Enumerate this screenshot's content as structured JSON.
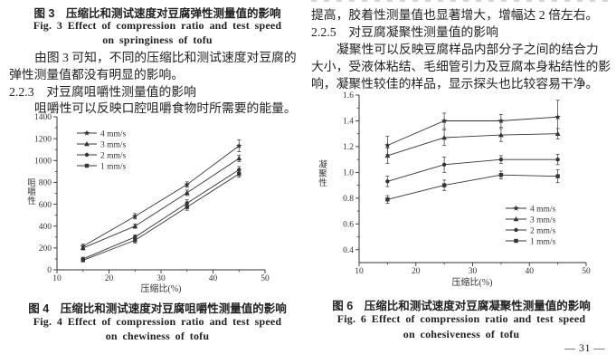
{
  "left_column": {
    "fig3": {
      "cn": "图 3　压缩比和测试速度对豆腐弹性测量值的影响",
      "en1": "Fig. 3 Effect of compression ratio and test speed",
      "en2": "on springiness of tofu"
    },
    "para1": [
      "由图 3 可知，不同的压缩比和测试速度对豆腐的",
      "弹性测量值都没有明显的影响。"
    ],
    "section_223": "2.2.3　对豆腐咀嚼性测量值的影响",
    "para2": [
      "咀嚼性可以反映口腔咀嚼食物时所需要的能量。"
    ],
    "fig4": {
      "cn": "图 4　压缩比和测试速度对豆腐咀嚼性测量值的影响",
      "en1": "Fig. 4 Effect of compression ratio and test speed",
      "en2": "on chewiness of tofu"
    }
  },
  "right_column": {
    "para3": [
      "提高，胶着性测量值也显著增大，增幅达 2 倍左右。"
    ],
    "section_225": "2.2.5　对豆腐凝聚性测量值的影响",
    "para4": [
      "凝聚性可以反映豆腐样品内部分子之间的结合力",
      "大小，受液体粘结、毛细管引力及豆腐本身粘结性的影",
      "响，凝聚性较佳的样品，显示探头也比较容易干净。"
    ],
    "fig6": {
      "cn": "图 6　压缩比和测试速度对豆腐凝聚性测量值的影响",
      "en1": "Fig. 6 Effect of compression ratio and test speed",
      "en2": "on cohesiveness of tofu"
    }
  },
  "page_number": "— 31 —",
  "chart_data": [
    {
      "id": "fig4",
      "type": "line",
      "title": "",
      "xlabel": "压缩比(%)",
      "ylabel": "咀嚼性",
      "x": [
        15,
        25,
        35,
        45
      ],
      "series": [
        {
          "name": "4 mm/s",
          "marker": "star",
          "values": [
            215,
            490,
            780,
            1135
          ],
          "errors": [
            20,
            25,
            25,
            55
          ]
        },
        {
          "name": "3 mm/s",
          "marker": "triangle",
          "values": [
            200,
            400,
            705,
            1020
          ],
          "errors": [
            18,
            20,
            25,
            30
          ]
        },
        {
          "name": "2 mm/s",
          "marker": "circle",
          "values": [
            100,
            300,
            610,
            915
          ],
          "errors": [
            15,
            20,
            30,
            30
          ]
        },
        {
          "name": "1 mm/s",
          "marker": "square",
          "values": [
            88,
            270,
            575,
            878
          ],
          "errors": [
            15,
            25,
            30,
            30
          ]
        }
      ],
      "xlim": [
        10,
        50
      ],
      "ylim": [
        0,
        1400
      ],
      "xticks": [
        10,
        20,
        30,
        40,
        50
      ],
      "yticks": [
        0,
        200,
        400,
        600,
        800,
        1000,
        1200,
        1400
      ],
      "ytick_labels": [
        "0",
        "200",
        "400",
        "600",
        "800",
        "1000",
        "1200",
        "1400"
      ],
      "legend_position": "top-left",
      "grid": false
    },
    {
      "id": "fig6",
      "type": "line",
      "title": "",
      "xlabel": "压缩比(%)",
      "ylabel": "凝聚性",
      "x": [
        15,
        25,
        35,
        45
      ],
      "series": [
        {
          "name": "4 mm/s",
          "marker": "star",
          "values": [
            1.21,
            1.4,
            1.4,
            1.43
          ],
          "errors": [
            0.07,
            0.06,
            0.05,
            0.13
          ]
        },
        {
          "name": "3 mm/s",
          "marker": "triangle",
          "values": [
            1.13,
            1.27,
            1.29,
            1.3
          ],
          "errors": [
            0.06,
            0.06,
            0.05,
            0.04
          ]
        },
        {
          "name": "2 mm/s",
          "marker": "circle",
          "values": [
            0.93,
            1.06,
            1.1,
            1.1
          ],
          "errors": [
            0.04,
            0.06,
            0.03,
            0.04
          ]
        },
        {
          "name": "1 mm/s",
          "marker": "square",
          "values": [
            0.79,
            0.9,
            0.98,
            0.97
          ],
          "errors": [
            0.03,
            0.04,
            0.03,
            0.05
          ]
        }
      ],
      "xlim": [
        10,
        50
      ],
      "ylim": [
        0.3,
        1.6
      ],
      "xticks": [
        10,
        20,
        30,
        40,
        50
      ],
      "yticks": [
        0.4,
        0.6,
        0.8,
        1.0,
        1.2,
        1.4,
        1.6
      ],
      "ytick_labels": [
        "0.4",
        "0.6",
        "0.8",
        "1.0",
        "1.2",
        "1.4",
        "1.6"
      ],
      "legend_position": "bottom-right",
      "grid": false
    }
  ]
}
